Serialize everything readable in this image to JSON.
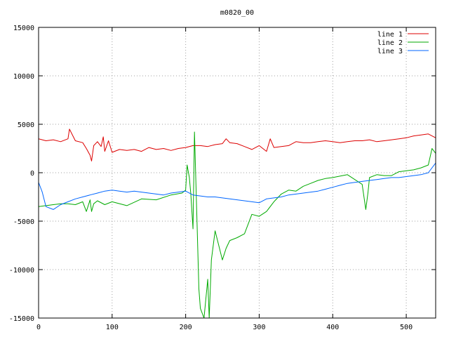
{
  "chart_data": {
    "type": "line",
    "title": "m0820_00",
    "xlabel": "",
    "ylabel": "",
    "xlim": [
      0,
      540
    ],
    "ylim": [
      -15000,
      15000
    ],
    "x_ticks": [
      0,
      100,
      200,
      300,
      400,
      500
    ],
    "y_ticks": [
      -15000,
      -10000,
      -5000,
      0,
      5000,
      10000,
      15000
    ],
    "grid": true,
    "legend_position": "top-right",
    "series": [
      {
        "name": "line 1",
        "color": "#dd0000",
        "x": [
          0,
          10,
          20,
          30,
          40,
          42,
          50,
          60,
          65,
          70,
          72,
          75,
          80,
          85,
          88,
          90,
          95,
          100,
          110,
          120,
          130,
          140,
          150,
          160,
          170,
          180,
          190,
          200,
          210,
          220,
          230,
          240,
          250,
          255,
          260,
          270,
          280,
          290,
          300,
          310,
          315,
          320,
          330,
          340,
          350,
          360,
          370,
          380,
          390,
          400,
          410,
          420,
          430,
          440,
          450,
          460,
          470,
          480,
          490,
          500,
          510,
          520,
          530,
          540
        ],
        "values": [
          3500,
          3300,
          3400,
          3200,
          3500,
          4500,
          3300,
          3100,
          2500,
          1800,
          1200,
          2800,
          3200,
          2700,
          3700,
          2200,
          3300,
          2100,
          2400,
          2300,
          2400,
          2200,
          2600,
          2400,
          2500,
          2300,
          2500,
          2600,
          2800,
          2800,
          2700,
          2900,
          3000,
          3500,
          3100,
          3000,
          2700,
          2400,
          2800,
          2200,
          3500,
          2600,
          2700,
          2800,
          3200,
          3100,
          3100,
          3200,
          3300,
          3200,
          3100,
          3200,
          3300,
          3300,
          3400,
          3200,
          3300,
          3400,
          3500,
          3600,
          3800,
          3900,
          4000,
          3600
        ]
      },
      {
        "name": "line 2",
        "color": "#00aa00",
        "x": [
          0,
          10,
          20,
          30,
          40,
          50,
          60,
          65,
          70,
          72,
          75,
          80,
          90,
          100,
          120,
          140,
          160,
          180,
          195,
          200,
          202,
          205,
          207,
          210,
          212,
          215,
          218,
          220,
          225,
          230,
          232,
          235,
          240,
          245,
          250,
          255,
          260,
          270,
          280,
          290,
          300,
          310,
          320,
          330,
          340,
          350,
          360,
          370,
          380,
          390,
          400,
          420,
          440,
          445,
          448,
          450,
          460,
          470,
          480,
          490,
          500,
          510,
          520,
          530,
          535,
          540
        ],
        "values": [
          -3500,
          -3400,
          -3300,
          -3200,
          -3200,
          -3300,
          -3000,
          -4000,
          -2800,
          -4000,
          -3200,
          -2900,
          -3300,
          -3000,
          -3400,
          -2700,
          -2800,
          -2300,
          -2100,
          -1800,
          800,
          -500,
          -2200,
          -5800,
          4200,
          -4000,
          -12000,
          -14000,
          -15000,
          -11000,
          -15000,
          -9000,
          -6000,
          -7500,
          -9000,
          -7800,
          -7000,
          -6700,
          -6300,
          -4300,
          -4500,
          -4000,
          -3000,
          -2200,
          -1800,
          -1900,
          -1400,
          -1100,
          -800,
          -600,
          -500,
          -200,
          -1200,
          -3800,
          -2000,
          -500,
          -200,
          -300,
          -300,
          100,
          200,
          300,
          500,
          800,
          2500,
          2000
        ]
      },
      {
        "name": "line 3",
        "color": "#0066ff",
        "x": [
          0,
          5,
          10,
          20,
          30,
          40,
          50,
          60,
          70,
          80,
          90,
          100,
          110,
          120,
          130,
          140,
          150,
          160,
          170,
          180,
          190,
          200,
          210,
          220,
          230,
          240,
          250,
          260,
          270,
          280,
          290,
          300,
          310,
          320,
          330,
          340,
          350,
          360,
          370,
          380,
          390,
          400,
          410,
          420,
          430,
          440,
          450,
          460,
          470,
          480,
          490,
          500,
          510,
          520,
          530,
          540
        ],
        "values": [
          -1000,
          -2000,
          -3500,
          -3800,
          -3300,
          -3000,
          -2700,
          -2500,
          -2300,
          -2100,
          -1900,
          -1800,
          -1900,
          -2000,
          -1900,
          -2000,
          -2100,
          -2200,
          -2300,
          -2100,
          -2000,
          -1900,
          -2300,
          -2400,
          -2500,
          -2500,
          -2600,
          -2700,
          -2800,
          -2900,
          -3000,
          -3100,
          -2700,
          -2600,
          -2500,
          -2300,
          -2200,
          -2100,
          -2000,
          -1900,
          -1700,
          -1500,
          -1300,
          -1100,
          -1000,
          -900,
          -800,
          -700,
          -600,
          -500,
          -500,
          -400,
          -300,
          -200,
          0,
          1000
        ]
      }
    ]
  }
}
